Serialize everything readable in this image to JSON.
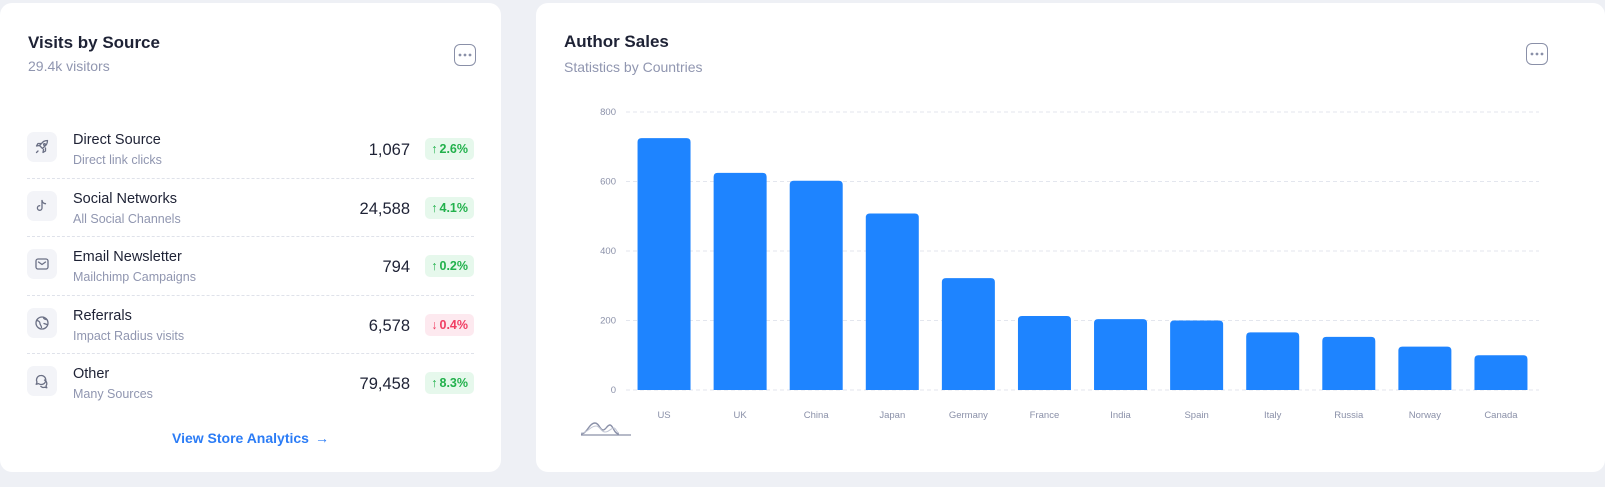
{
  "visits": {
    "title": "Visits by Source",
    "subtitle": "29.4k visitors",
    "items": [
      {
        "name": "Direct Source",
        "desc": "Direct link clicks",
        "value": "1,067",
        "change": "2.6%",
        "trend": "up",
        "icon": "rocket-icon"
      },
      {
        "name": "Social Networks",
        "desc": "All Social Channels",
        "value": "24,588",
        "change": "4.1%",
        "trend": "up",
        "icon": "tiktok-icon"
      },
      {
        "name": "Email Newsletter",
        "desc": "Mailchimp Campaigns",
        "value": "794",
        "change": "0.2%",
        "trend": "up",
        "icon": "mail-icon"
      },
      {
        "name": "Referrals",
        "desc": "Impact Radius visits",
        "value": "6,578",
        "change": "0.4%",
        "trend": "down",
        "icon": "globe-icon"
      },
      {
        "name": "Other",
        "desc": "Many Sources",
        "value": "79,458",
        "change": "8.3%",
        "trend": "up",
        "icon": "chat-bubbles-icon"
      }
    ],
    "link_label": "View Store Analytics"
  },
  "sales": {
    "title": "Author Sales",
    "subtitle": "Statistics by Countries"
  },
  "colors": {
    "bar": "#1e84ff",
    "accent": "#2b7cf6",
    "positive": "#22b14c",
    "negative": "#f03e63"
  },
  "chart_data": {
    "type": "bar",
    "categories": [
      "US",
      "UK",
      "China",
      "Japan",
      "Germany",
      "France",
      "India",
      "Spain",
      "Italy",
      "Russia",
      "Norway",
      "Canada"
    ],
    "values": [
      725,
      625,
      602,
      508,
      322,
      213,
      204,
      200,
      166,
      153,
      125,
      100
    ],
    "yticks": [
      0,
      200,
      400,
      600,
      800
    ],
    "ylim": [
      0,
      800
    ],
    "grid": true,
    "title": "",
    "xlabel": "",
    "ylabel": ""
  }
}
